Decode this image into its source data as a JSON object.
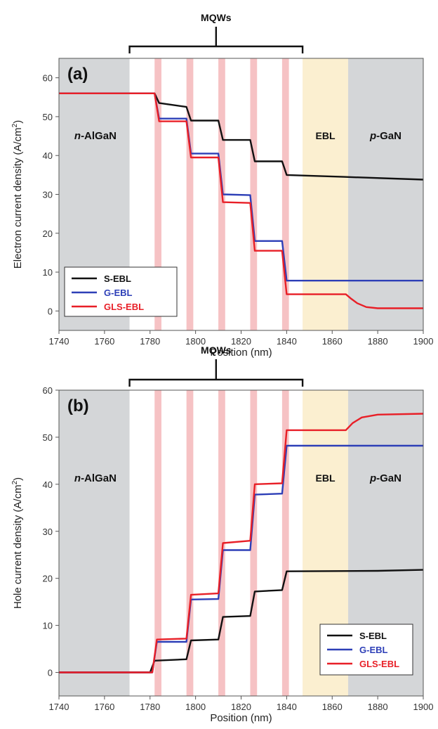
{
  "chart_data": [
    {
      "type": "line",
      "panel_label": "(a)",
      "top_annotation": "MQWs",
      "ylabel": "Electron current density (A/cm",
      "ylabel_sup": "2",
      "ylabel_close": ")",
      "xlabel": "Position (nm)",
      "xlim": [
        1740,
        1900
      ],
      "ylim": [
        -5,
        65
      ],
      "xticks": [
        "1740",
        "1760",
        "1780",
        "1800",
        "1820",
        "1840",
        "1860",
        "1880",
        "1900"
      ],
      "yticks": [
        "0",
        "10",
        "20",
        "30",
        "40",
        "50",
        "60"
      ],
      "regions": {
        "n_AlGaN": {
          "label_italic": "n",
          "label_rest": "-AlGaN",
          "range": [
            1740,
            1771
          ],
          "color": "#d4d6d8"
        },
        "EBL": {
          "label": "EBL",
          "range": [
            1847,
            1867
          ],
          "color": "#fbefd0"
        },
        "p_GaN": {
          "label_italic": "p",
          "label_rest": "-GaN",
          "range": [
            1867,
            1900
          ],
          "color": "#d4d6d8"
        },
        "MQW_bracket": [
          1771,
          1847
        ],
        "quantum_wells": [
          [
            1782,
            1785
          ],
          [
            1796,
            1799
          ],
          [
            1810,
            1813
          ],
          [
            1824,
            1827
          ],
          [
            1838,
            1841
          ]
        ],
        "well_color": "#f6c2c4"
      },
      "legend_position": "lower-left",
      "series": [
        {
          "name": "S-EBL",
          "color": "#111111",
          "points": [
            [
              1740,
              56
            ],
            [
              1782,
              56
            ],
            [
              1784,
              53.5
            ],
            [
              1790,
              53
            ],
            [
              1796,
              52.5
            ],
            [
              1798,
              49
            ],
            [
              1810,
              49
            ],
            [
              1812,
              44
            ],
            [
              1824,
              44
            ],
            [
              1826,
              38.5
            ],
            [
              1838,
              38.5
            ],
            [
              1840,
              35
            ],
            [
              1865,
              34.5
            ],
            [
              1900,
              33.8
            ]
          ]
        },
        {
          "name": "G-EBL",
          "color": "#2d3fb7",
          "points": [
            [
              1740,
              56
            ],
            [
              1782,
              56
            ],
            [
              1784,
              49.5
            ],
            [
              1796,
              49.5
            ],
            [
              1798,
              40.5
            ],
            [
              1810,
              40.5
            ],
            [
              1812,
              30
            ],
            [
              1824,
              29.8
            ],
            [
              1826,
              18
            ],
            [
              1838,
              18
            ],
            [
              1840,
              7.8
            ],
            [
              1900,
              7.8
            ]
          ]
        },
        {
          "name": "GLS-EBL",
          "color": "#e81f27",
          "points": [
            [
              1740,
              56
            ],
            [
              1782,
              56
            ],
            [
              1784,
              48.8
            ],
            [
              1796,
              48.8
            ],
            [
              1798,
              39.5
            ],
            [
              1810,
              39.5
            ],
            [
              1812,
              28
            ],
            [
              1824,
              27.8
            ],
            [
              1826,
              15.5
            ],
            [
              1838,
              15.5
            ],
            [
              1840,
              4.3
            ],
            [
              1866,
              4.3
            ],
            [
              1868,
              3.3
            ],
            [
              1871,
              2
            ],
            [
              1875,
              1
            ],
            [
              1880,
              0.7
            ],
            [
              1900,
              0.7
            ]
          ]
        }
      ]
    },
    {
      "type": "line",
      "panel_label": "(b)",
      "top_annotation": "MQWs",
      "ylabel": "Hole current density (A/cm",
      "ylabel_sup": "2",
      "ylabel_close": ")",
      "xlabel": "Position (nm)",
      "xlim": [
        1740,
        1900
      ],
      "ylim": [
        -5,
        60
      ],
      "xticks": [
        "1740",
        "1760",
        "1780",
        "1800",
        "1820",
        "1840",
        "1860",
        "1880",
        "1900"
      ],
      "yticks": [
        "0",
        "10",
        "20",
        "30",
        "40",
        "50",
        "60"
      ],
      "regions": {
        "n_AlGaN": {
          "label_italic": "n",
          "label_rest": "-AlGaN",
          "range": [
            1740,
            1771
          ],
          "color": "#d4d6d8"
        },
        "EBL": {
          "label": "EBL",
          "range": [
            1847,
            1867
          ],
          "color": "#fbefd0"
        },
        "p_GaN": {
          "label_italic": "p",
          "label_rest": "-GaN",
          "range": [
            1867,
            1900
          ],
          "color": "#d4d6d8"
        },
        "MQW_bracket": [
          1771,
          1847
        ],
        "quantum_wells": [
          [
            1782,
            1785
          ],
          [
            1796,
            1799
          ],
          [
            1810,
            1813
          ],
          [
            1824,
            1827
          ],
          [
            1838,
            1841
          ]
        ],
        "well_color": "#f6c2c4"
      },
      "legend_position": "lower-right",
      "series": [
        {
          "name": "S-EBL",
          "color": "#111111",
          "points": [
            [
              1740,
              0
            ],
            [
              1780,
              0
            ],
            [
              1782,
              2.5
            ],
            [
              1796,
              2.8
            ],
            [
              1798,
              6.8
            ],
            [
              1810,
              7
            ],
            [
              1812,
              11.8
            ],
            [
              1824,
              12
            ],
            [
              1826,
              17.2
            ],
            [
              1838,
              17.5
            ],
            [
              1840,
              21.5
            ],
            [
              1880,
              21.6
            ],
            [
              1900,
              21.8
            ]
          ]
        },
        {
          "name": "G-EBL",
          "color": "#2d3fb7",
          "points": [
            [
              1740,
              0
            ],
            [
              1781,
              0
            ],
            [
              1783,
              6.5
            ],
            [
              1796,
              6.5
            ],
            [
              1798,
              15.5
            ],
            [
              1810,
              15.6
            ],
            [
              1812,
              26
            ],
            [
              1824,
              26
            ],
            [
              1826,
              37.8
            ],
            [
              1838,
              38
            ],
            [
              1840,
              48.2
            ],
            [
              1900,
              48.2
            ]
          ]
        },
        {
          "name": "GLS-EBL",
          "color": "#e81f27",
          "points": [
            [
              1740,
              0
            ],
            [
              1781,
              0
            ],
            [
              1783,
              7
            ],
            [
              1796,
              7.2
            ],
            [
              1798,
              16.5
            ],
            [
              1810,
              16.8
            ],
            [
              1812,
              27.5
            ],
            [
              1824,
              28
            ],
            [
              1826,
              40
            ],
            [
              1838,
              40.2
            ],
            [
              1840,
              51.5
            ],
            [
              1866,
              51.5
            ],
            [
              1869,
              53
            ],
            [
              1873,
              54.2
            ],
            [
              1880,
              54.8
            ],
            [
              1900,
              55
            ]
          ]
        }
      ]
    }
  ]
}
